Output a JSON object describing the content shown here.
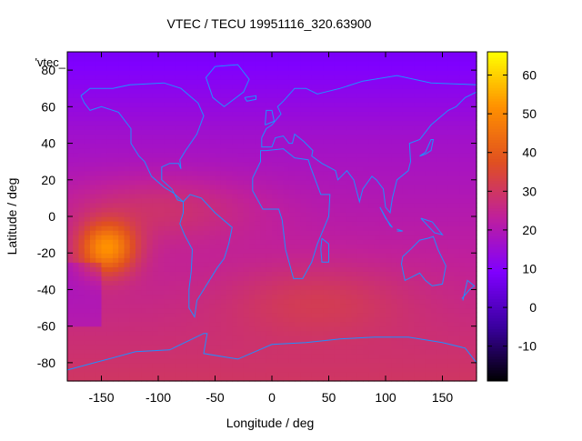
{
  "chart_data": {
    "type": "heatmap",
    "title": "VTEC / TECU 19951116_320.63900",
    "xlabel": "Longitude / deg",
    "ylabel": "Latitude / deg",
    "key_label": "'vtec_",
    "xlim": [
      -180,
      180
    ],
    "ylim": [
      -90,
      90
    ],
    "x_ticks": [
      -150,
      -100,
      -50,
      0,
      50,
      100,
      150
    ],
    "y_ticks": [
      -80,
      -60,
      -40,
      -20,
      0,
      20,
      40,
      60,
      80
    ],
    "colorbar": {
      "range": [
        -19,
        66
      ],
      "ticks": [
        -10,
        0,
        10,
        20,
        30,
        40,
        50,
        60
      ],
      "palette": [
        "#000000",
        "#3a00a0",
        "#8000ff",
        "#c0209a",
        "#e05020",
        "#ff9000",
        "#ffff00"
      ]
    },
    "grid": false,
    "coastline_color": "#1e90ff",
    "field_description": {
      "max_value": 58,
      "max_location": [
        -145,
        -17
      ],
      "background_north": 12,
      "background_south": 30
    }
  }
}
